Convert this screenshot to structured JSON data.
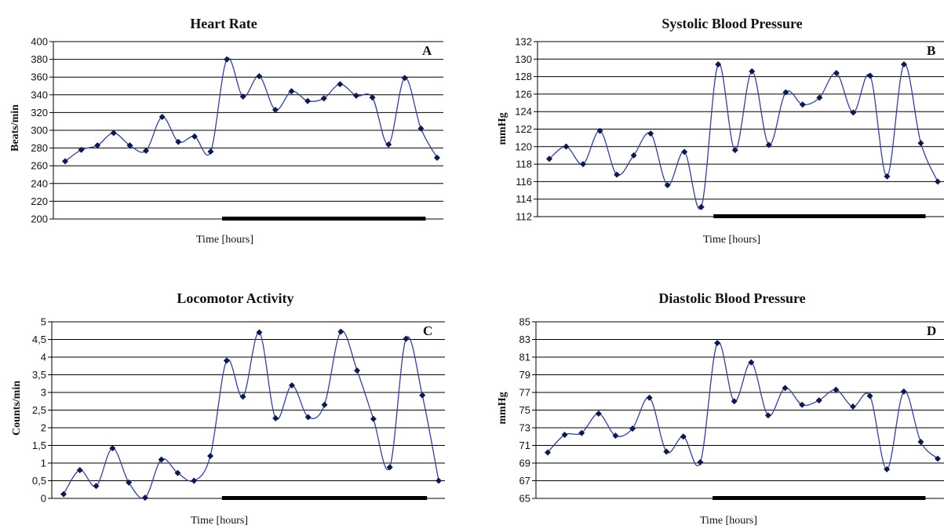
{
  "colors": {
    "line": "#3b3f8f",
    "marker": "#0a1a4f",
    "grid": "#000000",
    "night_bar": "#000000"
  },
  "chart_data": [
    {
      "id": "A",
      "type": "line",
      "title": "Heart Rate",
      "panel_letter": "A",
      "xlabel": "Time [hours]",
      "ylabel": "Beats/min",
      "ylim": [
        200,
        400
      ],
      "yticks": [
        "200",
        "220",
        "240",
        "260",
        "280",
        "300",
        "320",
        "340",
        "360",
        "380",
        "400"
      ],
      "grid": true,
      "series": [
        {
          "values": [
            265,
            278,
            283,
            297,
            283,
            277,
            315,
            287,
            293,
            276,
            380,
            338,
            361,
            323,
            344,
            333,
            336,
            352,
            339,
            337,
            284,
            359,
            302,
            269
          ]
        }
      ],
      "night_bar": [
        10,
        22
      ]
    },
    {
      "id": "B",
      "type": "line",
      "title": "Systolic Blood Pressure",
      "panel_letter": "B",
      "xlabel": "Time [hours]",
      "ylabel": "mmHg",
      "ylim": [
        112,
        132
      ],
      "yticks": [
        "112",
        "114",
        "116",
        "118",
        "120",
        "122",
        "124",
        "126",
        "128",
        "130",
        "132"
      ],
      "grid": true,
      "series": [
        {
          "values": [
            118.6,
            120,
            118,
            121.8,
            116.8,
            119,
            121.5,
            115.6,
            119.4,
            113.1,
            129.4,
            119.6,
            128.6,
            120.2,
            126.2,
            124.8,
            125.6,
            128.4,
            123.9,
            128.1,
            116.6,
            129.4,
            120.4,
            116
          ]
        }
      ],
      "night_bar": [
        10,
        22
      ]
    },
    {
      "id": "C",
      "type": "line",
      "title": "Locomotor Activity",
      "panel_letter": "C",
      "xlabel": "Time [hours]",
      "ylabel": "Counts/min",
      "ylim": [
        0,
        5
      ],
      "yticks": [
        "0",
        "0,5",
        "1",
        "1,5",
        "2",
        "2,5",
        "3",
        "3,5",
        "4",
        "4,5",
        "5"
      ],
      "grid": true,
      "series": [
        {
          "values": [
            0.12,
            0.8,
            0.35,
            1.42,
            0.45,
            0.02,
            1.1,
            0.72,
            0.5,
            1.2,
            3.9,
            2.88,
            4.7,
            2.27,
            3.2,
            2.3,
            2.65,
            4.72,
            3.62,
            2.25,
            0.88,
            4.52,
            2.92,
            0.5
          ]
        }
      ],
      "night_bar": [
        10,
        22
      ]
    },
    {
      "id": "D",
      "type": "line",
      "title": "Diastolic Blood Pressure",
      "panel_letter": "D",
      "xlabel": "Time [hours]",
      "ylabel": "mmHg",
      "ylim": [
        65,
        85
      ],
      "yticks": [
        "65",
        "67",
        "69",
        "71",
        "73",
        "75",
        "77",
        "79",
        "81",
        "83",
        "85"
      ],
      "grid": true,
      "series": [
        {
          "values": [
            70.2,
            72.2,
            72.4,
            74.6,
            72.1,
            72.9,
            76.4,
            70.3,
            72,
            69.1,
            82.6,
            76,
            80.4,
            74.4,
            77.5,
            75.6,
            76.1,
            77.3,
            75.4,
            76.6,
            68.3,
            77.1,
            71.4,
            69.5
          ]
        }
      ],
      "night_bar": [
        10,
        22
      ]
    }
  ]
}
